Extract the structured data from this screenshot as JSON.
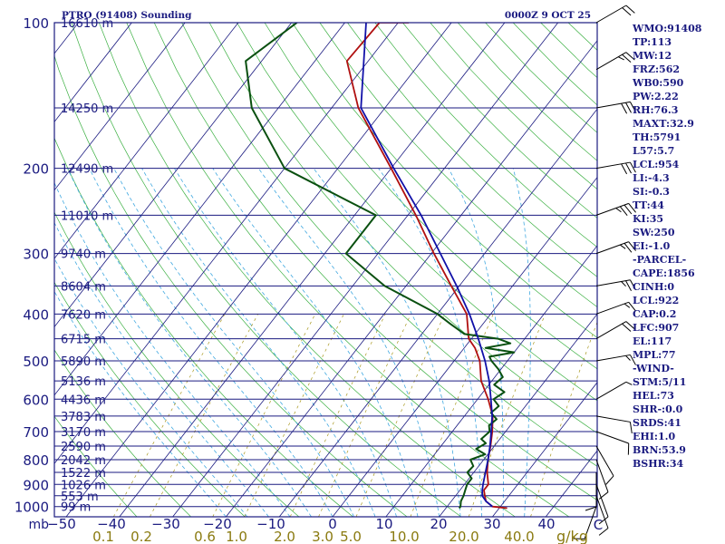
{
  "chart_data": {
    "type": "skew-t",
    "title": "PTRO (91408) Sounding",
    "datetime": "0000Z  9 OCT 25",
    "pressure_axis_unit": "mb",
    "mixing_ratio_unit": "g/kg",
    "pressure_levels": [
      100,
      200,
      300,
      400,
      500,
      600,
      700,
      800,
      900,
      1000
    ],
    "pressure_tick_labels": [
      "100",
      "200",
      "300",
      "400",
      "500",
      "600",
      "700",
      "800",
      "900",
      "1000"
    ],
    "temperature_ticks": [
      -50,
      -40,
      -30,
      -20,
      -10,
      0,
      10,
      20,
      30,
      40
    ],
    "temperature_tick_labels": [
      "−50",
      "−40",
      "−30",
      "−20",
      "−10",
      "0",
      "10",
      "20",
      "30",
      "40"
    ],
    "mixing_ratio_ticks": [
      0.1,
      0.2,
      0.6,
      1.0,
      2.0,
      3.0,
      5.0,
      10.0,
      20.0,
      40.0
    ],
    "mixing_ratio_tick_labels": [
      "0.1",
      "0.2",
      "0.6",
      "1.0",
      "2.0",
      "3.0",
      "5.0",
      "10.0",
      "20.0",
      "40.0"
    ],
    "height_levels": [
      {
        "p": 100,
        "label": "16610 m"
      },
      {
        "p": 150,
        "label": "14250 m"
      },
      {
        "p": 200,
        "label": "12490 m"
      },
      {
        "p": 250,
        "label": "11010 m"
      },
      {
        "p": 300,
        "label": "9740 m"
      },
      {
        "p": 350,
        "label": "8604 m"
      },
      {
        "p": 400,
        "label": "7620 m"
      },
      {
        "p": 450,
        "label": "6715 m"
      },
      {
        "p": 500,
        "label": "5890 m"
      },
      {
        "p": 550,
        "label": "5136 m"
      },
      {
        "p": 600,
        "label": "4436 m"
      },
      {
        "p": 650,
        "label": "3783 m"
      },
      {
        "p": 700,
        "label": "3170 m"
      },
      {
        "p": 750,
        "label": "2590 m"
      },
      {
        "p": 800,
        "label": "2042 m"
      },
      {
        "p": 850,
        "label": "1522 m"
      },
      {
        "p": 900,
        "label": "1026 m"
      },
      {
        "p": 950,
        "label": "553 m"
      },
      {
        "p": 1000,
        "label": "99 m"
      }
    ],
    "series": [
      {
        "color": "#b01010",
        "points": [
          [
            1008,
            31.5
          ],
          [
            1000,
            28.5
          ],
          [
            975,
            26.5
          ],
          [
            950,
            25.5
          ],
          [
            925,
            24.5
          ],
          [
            900,
            24.5
          ],
          [
            850,
            22.5
          ],
          [
            800,
            20.8
          ],
          [
            750,
            19.3
          ],
          [
            700,
            17.5
          ],
          [
            650,
            15.3
          ],
          [
            600,
            12.0
          ],
          [
            550,
            8.0
          ],
          [
            500,
            4.8
          ],
          [
            470,
            2.0
          ],
          [
            450,
            -0.5
          ],
          [
            400,
            -4.5
          ],
          [
            350,
            -11.5
          ],
          [
            300,
            -19.5
          ],
          [
            250,
            -28.5
          ],
          [
            200,
            -40.0
          ],
          [
            150,
            -55.0
          ],
          [
            120,
            -64.0
          ],
          [
            100,
            -63.5
          ],
          [
            100,
            -58.0
          ]
        ]
      },
      {
        "color": "#0a5010",
        "points": [
          [
            1008,
            22.5
          ],
          [
            1000,
            22.5
          ],
          [
            975,
            21.8
          ],
          [
            950,
            21.5
          ],
          [
            925,
            21.0
          ],
          [
            900,
            20.5
          ],
          [
            875,
            20.5
          ],
          [
            850,
            18.8
          ],
          [
            825,
            19.0
          ],
          [
            800,
            17.5
          ],
          [
            780,
            19.5
          ],
          [
            760,
            17.0
          ],
          [
            740,
            18.0
          ],
          [
            725,
            16.5
          ],
          [
            700,
            17.0
          ],
          [
            680,
            16.0
          ],
          [
            660,
            16.5
          ],
          [
            640,
            14.5
          ],
          [
            620,
            15.0
          ],
          [
            600,
            13.0
          ],
          [
            580,
            14.0
          ],
          [
            560,
            11.0
          ],
          [
            540,
            11.5
          ],
          [
            520,
            9.5
          ],
          [
            500,
            7.0
          ],
          [
            490,
            6.0
          ],
          [
            480,
            10.0
          ],
          [
            470,
            4.0
          ],
          [
            460,
            8.0
          ],
          [
            450,
            5.0
          ],
          [
            440,
            -2.0
          ],
          [
            420,
            -6.0
          ],
          [
            400,
            -10.0
          ],
          [
            350,
            -24.0
          ],
          [
            300,
            -36.0
          ],
          [
            250,
            -36.0
          ],
          [
            200,
            -60.0
          ],
          [
            150,
            -75.0
          ],
          [
            120,
            -83.0
          ],
          [
            100,
            -79.0
          ]
        ]
      },
      {
        "color": "#1010a8",
        "points": [
          [
            1000,
            28.5
          ],
          [
            975,
            26.5
          ],
          [
            950,
            25.0
          ],
          [
            925,
            24.2
          ],
          [
            900,
            23.5
          ],
          [
            850,
            22.2
          ],
          [
            800,
            20.8
          ],
          [
            750,
            19.2
          ],
          [
            700,
            17.3
          ],
          [
            650,
            15.2
          ],
          [
            600,
            12.5
          ],
          [
            550,
            9.5
          ],
          [
            500,
            5.8
          ],
          [
            450,
            1.3
          ],
          [
            400,
            -4.0
          ],
          [
            350,
            -10.5
          ],
          [
            300,
            -18.3
          ],
          [
            250,
            -27.5
          ],
          [
            200,
            -39.5
          ],
          [
            150,
            -54.5
          ],
          [
            100,
            -66.0
          ]
        ]
      }
    ],
    "wind_barbs": [
      {
        "p": 1000,
        "dir": 200,
        "spd": 10
      },
      {
        "p": 950,
        "dir": 160,
        "spd": 10
      },
      {
        "p": 900,
        "dir": 160,
        "spd": 10
      },
      {
        "p": 850,
        "dir": 180,
        "spd": 10
      },
      {
        "p": 800,
        "dir": 160,
        "spd": 10
      },
      {
        "p": 750,
        "dir": 150,
        "spd": 10
      },
      {
        "p": 700,
        "dir": 110,
        "spd": 10
      },
      {
        "p": 650,
        "dir": 100,
        "spd": 10
      },
      {
        "p": 600,
        "dir": 60,
        "spd": 5
      },
      {
        "p": 500,
        "dir": 80,
        "spd": 15
      },
      {
        "p": 450,
        "dir": 60,
        "spd": 20
      },
      {
        "p": 400,
        "dir": 70,
        "spd": 15
      },
      {
        "p": 350,
        "dir": 80,
        "spd": 25
      },
      {
        "p": 300,
        "dir": 70,
        "spd": 25
      },
      {
        "p": 250,
        "dir": 70,
        "spd": 35
      },
      {
        "p": 200,
        "dir": 80,
        "spd": 30
      },
      {
        "p": 150,
        "dir": 80,
        "spd": 30
      },
      {
        "p": 125,
        "dir": 60,
        "spd": 25
      },
      {
        "p": 100,
        "dir": 60,
        "spd": 20
      }
    ],
    "indices": [
      "WMO:91408",
      "TP:113",
      "MW:12",
      "FRZ:562",
      "WB0:590",
      "PW:2.22",
      "RH:76.3",
      "MAXT:32.9",
      "TH:5791",
      "L57:5.7",
      "LCL:954",
      "LI:-4.3",
      "SI:-0.3",
      "TT:44",
      "KI:35",
      "SW:250",
      "EI:-1.0",
      "-PARCEL-",
      "CAPE:1856",
      "CINH:0",
      "LCL:922",
      "CAP:0.2",
      "LFC:907",
      "EL:117",
      "MPL:77",
      "-WIND-",
      "STM:5/11",
      "HEL:73",
      "SHR-:0.0",
      "SRDS:41",
      "EHI:1.0",
      "BRN:53.9",
      "BSHR:34"
    ]
  }
}
